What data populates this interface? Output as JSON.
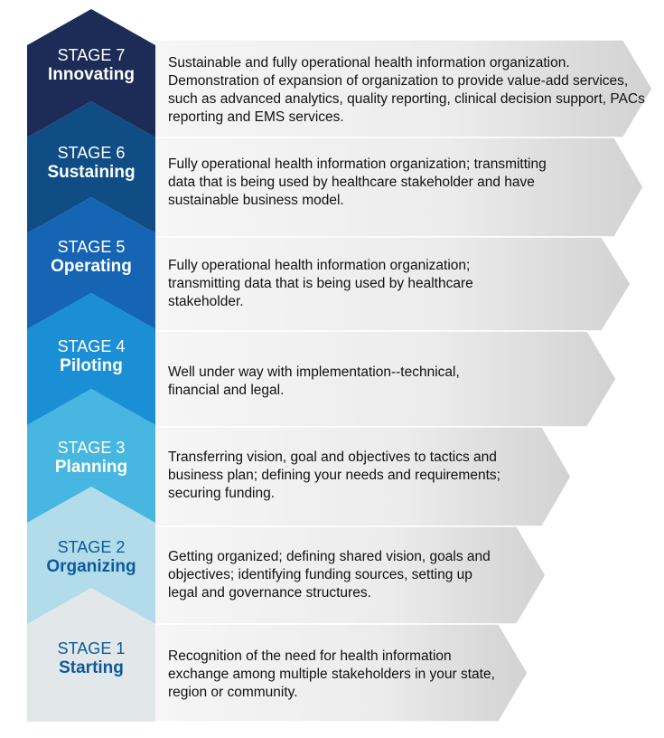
{
  "stages": [
    {
      "number": "STAGE 7",
      "name": "Innovating",
      "description": "Sustainable and fully operational health information organization. Demonstration of expansion of organization to provide value-add services, such as advanced analytics, quality reporting, clinical decision support, PACs reporting and EMS services.",
      "color": "#1c2c56",
      "text_color": "#ffffff"
    },
    {
      "number": "STAGE 6",
      "name": "Sustaining",
      "description": "Fully operational health information organization; transmitting data that is being used by healthcare stakeholder and have sustainable business model.",
      "color": "#0f4d84",
      "text_color": "#ffffff"
    },
    {
      "number": "STAGE 5",
      "name": "Operating",
      "description": "Fully operational health information organization; transmitting data that is being used by healthcare stakeholder.",
      "color": "#1565b4",
      "text_color": "#ffffff"
    },
    {
      "number": "STAGE 4",
      "name": "Piloting",
      "description": "Well under way with implementation--technical, financial and legal.",
      "color": "#1a8fd6",
      "text_color": "#ffffff"
    },
    {
      "number": "STAGE 3",
      "name": "Planning",
      "description": "Transferring vision, goal and objectives to tactics and business plan; defining your needs and requirements; securing funding.",
      "color": "#47b6e1",
      "text_color": "#ffffff"
    },
    {
      "number": "STAGE 2",
      "name": "Organizing",
      "description": "Getting organized; defining shared vision, goals and objectives; identifying funding sources, setting up legal and governance structures.",
      "color": "#b3dcea",
      "text_color": "#0d5a9b"
    },
    {
      "number": "STAGE 1",
      "name": "Starting",
      "description": "Recognition of the need for health information exchange among multiple stakeholders in your state, region or community.",
      "color": "#e2e7ea",
      "text_color": "#0d5a9b"
    }
  ],
  "colors": {
    "arrow_panel_light": "#f5f5f5",
    "arrow_panel_dark": "#d5d5d5",
    "description_text": "#111111"
  }
}
